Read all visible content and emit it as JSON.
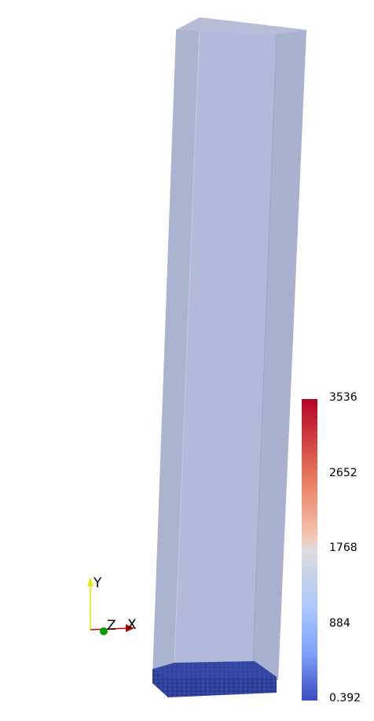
{
  "colorbar": {
    "ticks": [
      "3536",
      "2652",
      "1768",
      "884",
      "0.392"
    ],
    "range": [
      0.392,
      3536
    ],
    "colormap": [
      "#b40426",
      "#f5c4ad",
      "#dddcdc",
      "#aac7fd",
      "#3b4cc0"
    ]
  },
  "axes_triad": {
    "y_label": "Y",
    "z_label": "Z",
    "x_label": "X",
    "colors": {
      "x": "#cc0000",
      "y": "#e6e600",
      "z": "#00a000"
    }
  },
  "scene": {
    "container_color": "#aab4d8",
    "particle_color": "#2f3f9e",
    "background": "#ffffff"
  }
}
